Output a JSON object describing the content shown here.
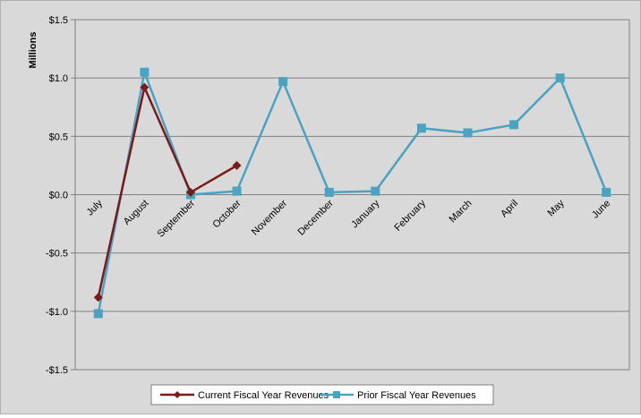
{
  "chart_data": {
    "type": "line",
    "categories": [
      "July",
      "August",
      "September",
      "October",
      "November",
      "December",
      "January",
      "February",
      "March",
      "April",
      "May",
      "June"
    ],
    "ylabel": "Millions",
    "ylim": [
      -1.5,
      1.5
    ],
    "ytick_values": [
      1.5,
      1.0,
      0.5,
      0.0,
      -0.5,
      -1.0,
      -1.5
    ],
    "ytick_labels": [
      "$1.5",
      "$1.0",
      "$0.5",
      "$0.0",
      "-$0.5",
      "-$1.0",
      "-$1.5"
    ],
    "grid": true,
    "legend_position": "bottom",
    "series": [
      {
        "name": "Current Fiscal Year Revenues",
        "color": "#7b1a1a",
        "marker": "diamond",
        "values": [
          -0.88,
          0.92,
          0.02,
          0.25,
          null,
          null,
          null,
          null,
          null,
          null,
          null,
          null
        ]
      },
      {
        "name": "Prior Fiscal Year Revenues",
        "color": "#4aa3c0",
        "marker": "square",
        "values": [
          -1.02,
          1.05,
          0.0,
          0.03,
          0.97,
          0.02,
          0.03,
          0.57,
          0.53,
          0.6,
          1.0,
          0.02
        ]
      }
    ]
  }
}
